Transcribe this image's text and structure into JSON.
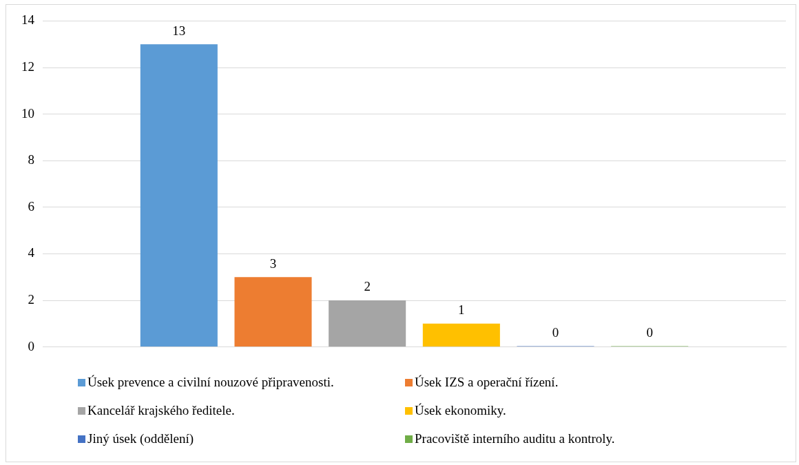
{
  "chart_data": {
    "type": "bar",
    "categories": [
      null
    ],
    "series": [
      {
        "name": "Úsek prevence a civilní nouzové připravenosti.",
        "color": "#5b9bd5",
        "values": [
          13
        ]
      },
      {
        "name": "Úsek IZS a operační řízení.",
        "color": "#ed7d31",
        "values": [
          3
        ]
      },
      {
        "name": "Kancelář krajského ředitele.",
        "color": "#a5a5a5",
        "values": [
          2
        ]
      },
      {
        "name": "Úsek ekonomiky.",
        "color": "#ffc000",
        "values": [
          1
        ]
      },
      {
        "name": "Jiný úsek (oddělení)",
        "color": "#4472c4",
        "values": [
          0
        ]
      },
      {
        "name": "Pracoviště interního auditu a kontroly.",
        "color": "#70ad47",
        "values": [
          0
        ]
      }
    ],
    "ylim": [
      0,
      14
    ],
    "yticks": [
      0,
      2,
      4,
      6,
      8,
      10,
      12,
      14
    ],
    "grid": "y",
    "legend": "bottom",
    "data_labels": true
  }
}
